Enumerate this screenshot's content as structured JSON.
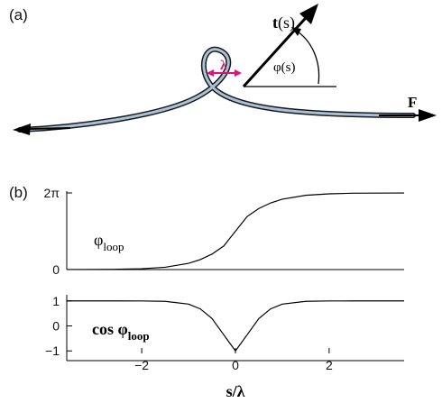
{
  "panel_a": {
    "label": "(a)",
    "tangent_label": "t",
    "tangent_arg": "(s)",
    "angle_symbol": "φ",
    "angle_arg": "(s)",
    "loop_width_label": "λ",
    "force_label": "F",
    "colors": {
      "rod_dark": "#1a1a1a",
      "rod_highlight": "#a8c0d8",
      "lambda_marker": "#e0127a"
    }
  },
  "panel_b": {
    "label": "(b)",
    "top_plot_label_main": "φ",
    "top_plot_label_sub": "loop",
    "bottom_plot_label_main": "cos φ",
    "bottom_plot_label_sub": "loop",
    "xlabel": "s/λ"
  },
  "chart_data": [
    {
      "type": "line",
      "title": "",
      "xlabel": "",
      "ylabel": "φloop",
      "xlim": [
        -3.6,
        3.6
      ],
      "ylim": [
        0,
        6.283
      ],
      "y_tick_labels": [
        "0",
        "2π"
      ],
      "y_tick_values": [
        0,
        6.283
      ],
      "grid": false,
      "series": [
        {
          "x": [
            -3.6,
            -3.0,
            -2.5,
            -2.0,
            -1.5,
            -1.0,
            -0.75,
            -0.5,
            -0.25,
            0.0,
            0.25,
            0.5,
            0.75,
            1.0,
            1.5,
            2.0,
            2.5,
            3.0,
            3.6
          ],
          "values": [
            0.003,
            0.01,
            0.026,
            0.07,
            0.19,
            0.51,
            0.82,
            1.27,
            1.93,
            3.14,
            4.35,
            5.01,
            5.46,
            5.77,
            6.09,
            6.21,
            6.26,
            6.27,
            6.28
          ]
        }
      ]
    },
    {
      "type": "line",
      "title": "",
      "xlabel": "s/λ",
      "ylabel": "cos φloop",
      "xlim": [
        -3.6,
        3.6
      ],
      "ylim": [
        -1.1,
        1.1
      ],
      "x_tick_labels": [
        "−2",
        "0",
        "2"
      ],
      "x_tick_values": [
        -2,
        0,
        2
      ],
      "y_tick_labels": [
        "1",
        "0",
        "−1"
      ],
      "y_tick_values": [
        1,
        0,
        -1
      ],
      "grid": false,
      "series": [
        {
          "x": [
            -3.6,
            -3.0,
            -2.5,
            -2.0,
            -1.5,
            -1.0,
            -0.75,
            -0.5,
            -0.25,
            0.0,
            0.25,
            0.5,
            0.75,
            1.0,
            1.5,
            2.0,
            2.5,
            3.0,
            3.6
          ],
          "values": [
            1.0,
            1.0,
            1.0,
            0.998,
            0.982,
            0.873,
            0.682,
            0.298,
            -0.353,
            -1.0,
            -0.353,
            0.298,
            0.682,
            0.873,
            0.982,
            0.998,
            1.0,
            1.0,
            1.0
          ]
        }
      ]
    }
  ]
}
